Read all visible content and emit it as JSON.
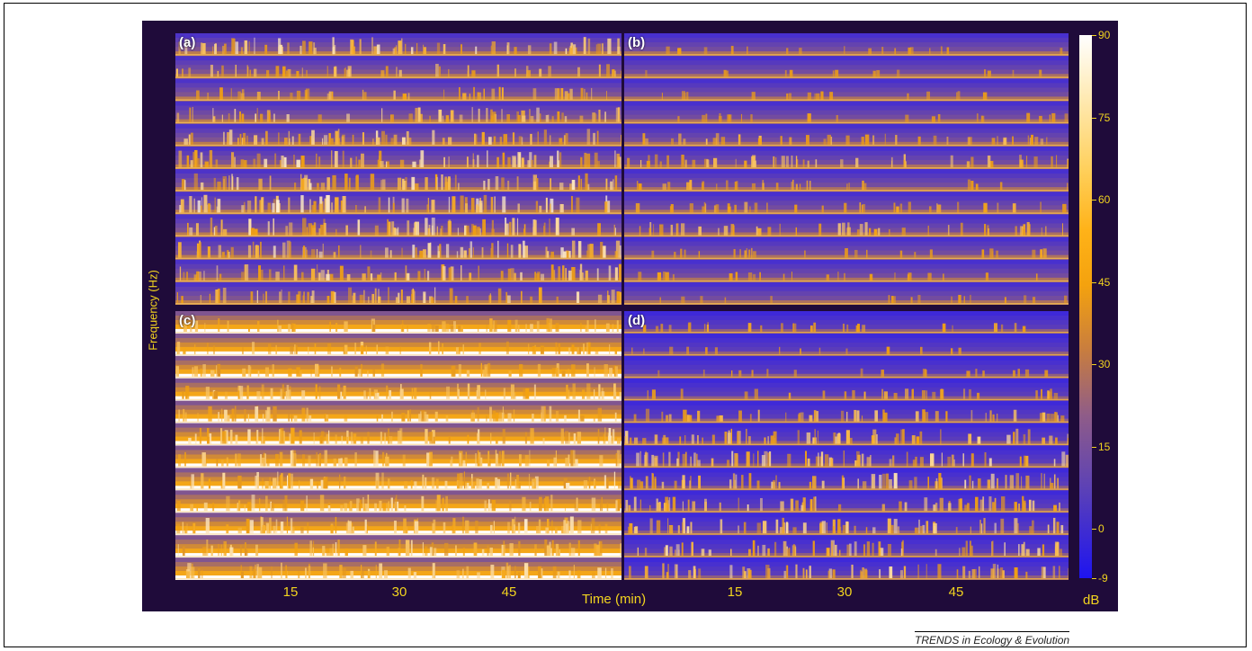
{
  "chart_data": [
    {
      "type": "heatmap",
      "panel": "(a)",
      "rows": 12,
      "activity": [
        0.85,
        0.55,
        0.5,
        0.7,
        0.75,
        0.85,
        0.8,
        0.9,
        0.9,
        0.85,
        0.8,
        0.75
      ],
      "background_level": 0.35,
      "xticks": [
        "15",
        "30",
        "45"
      ],
      "xlabel": "Time (min)"
    },
    {
      "type": "heatmap",
      "panel": "(b)",
      "rows": 12,
      "activity": [
        0.2,
        0.15,
        0.2,
        0.25,
        0.45,
        0.55,
        0.35,
        0.4,
        0.55,
        0.3,
        0.25,
        0.2
      ],
      "background_level": 0.3,
      "xticks": [
        "15",
        "30",
        "45"
      ],
      "xlabel": "Time (min)"
    },
    {
      "type": "heatmap",
      "panel": "(c)",
      "rows": 12,
      "activity": [
        0.6,
        0.55,
        0.6,
        0.75,
        0.75,
        0.8,
        0.8,
        0.85,
        0.8,
        0.85,
        0.8,
        0.75
      ],
      "background_level": 0.85,
      "xticks": [
        "15",
        "30",
        "45"
      ],
      "xlabel": "Time (min)"
    },
    {
      "type": "heatmap",
      "panel": "(d)",
      "rows": 12,
      "activity": [
        0.3,
        0.15,
        0.2,
        0.35,
        0.55,
        0.7,
        0.75,
        0.75,
        0.7,
        0.75,
        0.75,
        0.7
      ],
      "background_level": 0.2,
      "xticks": [
        "15",
        "30",
        "45"
      ],
      "xlabel": "Time (min)"
    }
  ],
  "figure": {
    "ylabel": "Frequency (Hz)",
    "xlabel": "Time (min)",
    "xticks_left": [
      "15",
      "30",
      "45"
    ],
    "xticks_right": [
      "15",
      "30",
      "45"
    ],
    "panel_labels": [
      "(a)",
      "(b)",
      "(c)",
      "(d)"
    ]
  },
  "colorbar": {
    "unit": "dB",
    "ticks": [
      "90",
      "75",
      "60",
      "45",
      "30",
      "15",
      "0",
      "-9"
    ],
    "range": [
      -9,
      90
    ]
  },
  "colors": {
    "background": "#1f0b3a",
    "low": "#2a1cf0",
    "mid": "#f4a20e",
    "high": "#ffffff",
    "axis_text": "#f2d41f"
  },
  "credit": "TRENDS in Ecology & Evolution"
}
